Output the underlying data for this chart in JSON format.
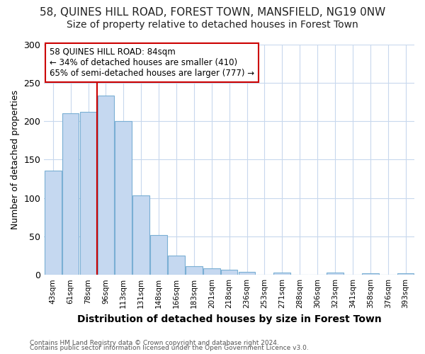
{
  "title_line1": "58, QUINES HILL ROAD, FOREST TOWN, MANSFIELD, NG19 0NW",
  "title_line2": "Size of property relative to detached houses in Forest Town",
  "xlabel": "Distribution of detached houses by size in Forest Town",
  "ylabel": "Number of detached properties",
  "categories": [
    "43sqm",
    "61sqm",
    "78sqm",
    "96sqm",
    "113sqm",
    "131sqm",
    "148sqm",
    "166sqm",
    "183sqm",
    "201sqm",
    "218sqm",
    "236sqm",
    "253sqm",
    "271sqm",
    "288sqm",
    "306sqm",
    "323sqm",
    "341sqm",
    "358sqm",
    "376sqm",
    "393sqm"
  ],
  "values": [
    136,
    210,
    212,
    233,
    200,
    103,
    52,
    25,
    11,
    8,
    7,
    4,
    0,
    3,
    0,
    0,
    3,
    0,
    2,
    0,
    2
  ],
  "bar_color": "#c5d8f0",
  "bar_edge_color": "#7aafd4",
  "highlight_color": "#cc0000",
  "annotation_title": "58 QUINES HILL ROAD: 84sqm",
  "annotation_line2": "← 34% of detached houses are smaller (410)",
  "annotation_line3": "65% of semi-detached houses are larger (777) →",
  "annotation_box_facecolor": "#ffffff",
  "annotation_box_edgecolor": "#cc0000",
  "ylim": [
    0,
    300
  ],
  "yticks": [
    0,
    50,
    100,
    150,
    200,
    250,
    300
  ],
  "background_color": "#ffffff",
  "grid_color": "#c8d8ed",
  "footer_line1": "Contains HM Land Registry data © Crown copyright and database right 2024.",
  "footer_line2": "Contains public sector information licensed under the Open Government Licence v3.0.",
  "title1_fontsize": 11,
  "title2_fontsize": 10,
  "xlabel_fontsize": 10,
  "ylabel_fontsize": 9,
  "bar_width": 0.95
}
